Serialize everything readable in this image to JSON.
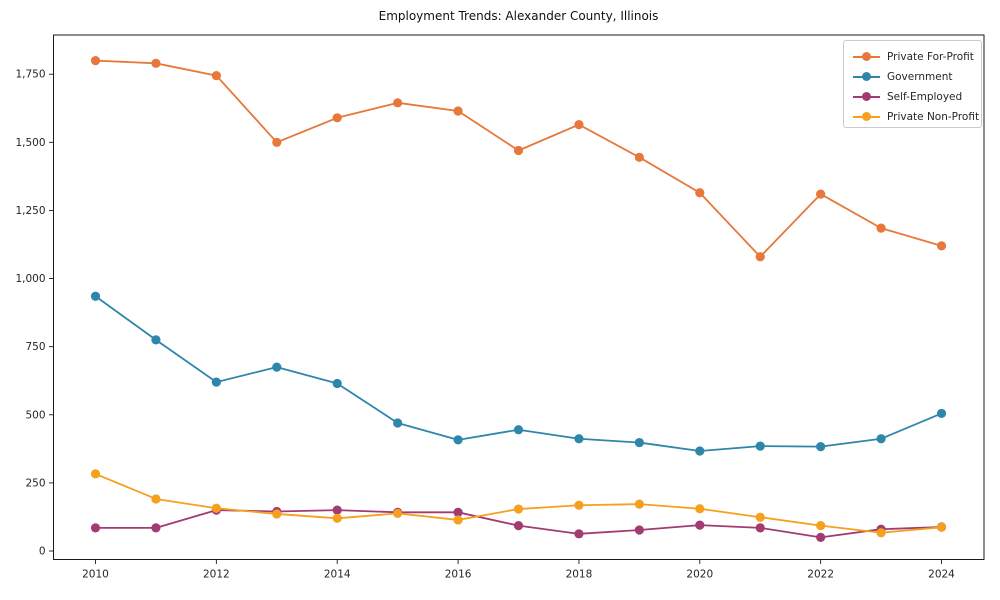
{
  "title": "Employment Trends: Alexander County, Illinois",
  "chart_data": {
    "type": "line",
    "title": "Employment Trends: Alexander County, Illinois",
    "x": [
      2010,
      2011,
      2012,
      2013,
      2014,
      2015,
      2016,
      2017,
      2018,
      2019,
      2020,
      2021,
      2022,
      2023,
      2024
    ],
    "series": [
      {
        "name": "Private For-Profit",
        "color": "#E7773B",
        "values": [
          1800,
          1790,
          1745,
          1500,
          1590,
          1645,
          1615,
          1470,
          1565,
          1445,
          1315,
          1080,
          1310,
          1185,
          1120
        ]
      },
      {
        "name": "Government",
        "color": "#2E86AB",
        "values": [
          935,
          775,
          620,
          675,
          615,
          470,
          408,
          445,
          412,
          398,
          367,
          385,
          383,
          412,
          505
        ]
      },
      {
        "name": "Self-Employed",
        "color": "#A23B72",
        "values": [
          85,
          85,
          150,
          145,
          150,
          142,
          142,
          93,
          63,
          77,
          95,
          85,
          50,
          80,
          88
        ]
      },
      {
        "name": "Private Non-Profit",
        "color": "#F5A01E",
        "values": [
          283,
          191,
          157,
          136,
          120,
          138,
          114,
          154,
          168,
          172,
          155,
          124,
          93,
          67,
          87
        ]
      }
    ],
    "xticks": [
      2010,
      2012,
      2014,
      2016,
      2018,
      2020,
      2022,
      2024
    ],
    "yticks": [
      0,
      250,
      500,
      750,
      1000,
      1250,
      1500,
      1750
    ],
    "ytick_labels": [
      "0",
      "250",
      "500",
      "750",
      "1,000",
      "1,250",
      "1,500",
      "1,750"
    ],
    "xlabel": "",
    "ylabel": "",
    "ylim": [
      -30,
      1895
    ],
    "grid": false,
    "legend_position": "upper right",
    "axis_color": "#1a1a1a",
    "tick_label_color": "#262626"
  }
}
